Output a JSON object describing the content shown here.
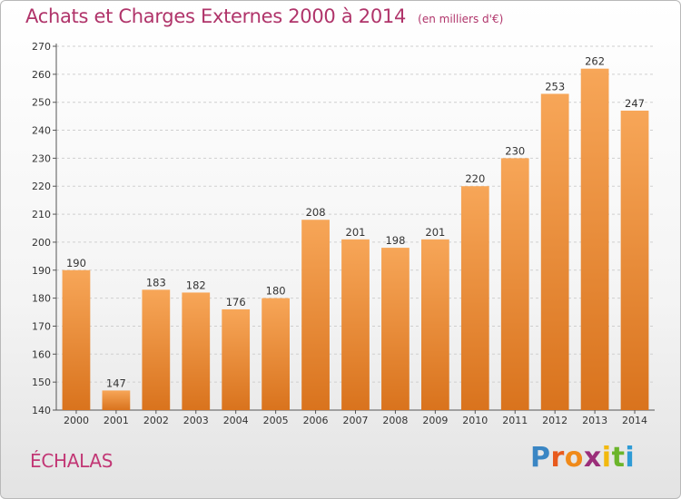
{
  "header": {
    "title": "Achats et Charges Externes 2000 à 2014",
    "unit": "(en milliers d'€)"
  },
  "footer": {
    "place": "ÉCHALAS",
    "logo_letters": [
      "P",
      "r",
      "o",
      "x",
      "i",
      "t",
      "i"
    ]
  },
  "colors": {
    "title": "#b0346a",
    "bar_top": "#f7a658",
    "bar_bottom": "#d9731d",
    "grid": "#cfcfcf",
    "place": "#c23775"
  },
  "chart_data": {
    "type": "bar",
    "title": "Achats et Charges Externes 2000 à 2014",
    "subtitle": "(en milliers d'€)",
    "categories": [
      "2000",
      "2001",
      "2002",
      "2003",
      "2004",
      "2005",
      "2006",
      "2007",
      "2008",
      "2009",
      "2010",
      "2011",
      "2012",
      "2013",
      "2014"
    ],
    "values": [
      190,
      147,
      183,
      182,
      176,
      180,
      208,
      201,
      198,
      201,
      220,
      230,
      253,
      262,
      247
    ],
    "ylim": [
      140,
      270
    ],
    "yticks": [
      140,
      150,
      160,
      170,
      180,
      190,
      200,
      210,
      220,
      230,
      240,
      250,
      260,
      270
    ],
    "grid": "dashed horizontal",
    "xlabel": "",
    "ylabel": ""
  }
}
